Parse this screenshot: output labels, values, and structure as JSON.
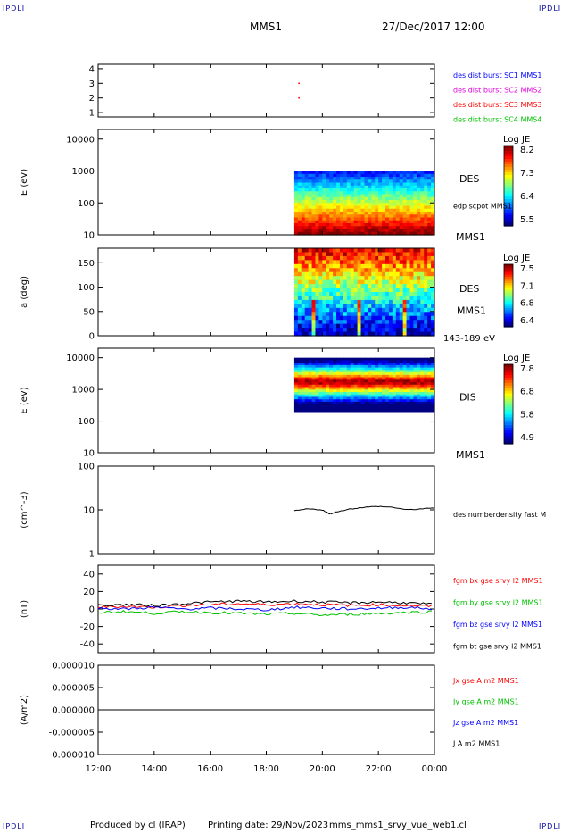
{
  "header": {
    "corner_label": "IPDLI",
    "spacecraft": "MMS1",
    "datetime": "27/Dec/2017 12:00"
  },
  "footer": {
    "produced_by": "Produced by cl (IRAP)",
    "printing_date": "Printing date: 29/Nov/2023",
    "filename": "mms_mms1_srvy_vue_web1.cl"
  },
  "colors": {
    "mms1": "#0000ff",
    "mms2": "#e000e0",
    "mms3": "#ff0000",
    "mms4": "#00c000",
    "black": "#000000"
  },
  "chart_data": [
    {
      "type": "scatter",
      "panel": "burst",
      "y_ticks": [
        "4",
        "3",
        "2",
        "1"
      ],
      "ylim": [
        0.7,
        4.3
      ],
      "points": [
        {
          "time": "19:10",
          "y": 3.0
        },
        {
          "time": "19:10",
          "y": 2.0
        }
      ],
      "legend": [
        {
          "label": "des dist burst SC1 MMS1",
          "color": "#0000ff"
        },
        {
          "label": "des dist burst SC2 MMS2",
          "color": "#e000e0"
        },
        {
          "label": "des dist burst SC3 MMS3",
          "color": "#ff0000"
        },
        {
          "label": "des dist burst SC4 MMS4",
          "color": "#00c000"
        }
      ]
    },
    {
      "type": "heatmap",
      "panel": "des-energy",
      "ylabel": "E (eV)",
      "y_ticks": [
        "10000",
        "1000",
        "100",
        "10"
      ],
      "scale": "log",
      "ylim": [
        10,
        20000
      ],
      "data_start": "19:00",
      "label": "DES",
      "sublabel": "edp scpot MMS1",
      "right_label": "MMS1",
      "colorbar": {
        "title": "Log JE",
        "ticks": [
          "8.2",
          "7.3",
          "6.4",
          "5.5"
        ]
      }
    },
    {
      "type": "heatmap",
      "panel": "des-pitch",
      "ylabel": "a (deg)",
      "y_ticks": [
        "150",
        "100",
        "50",
        "0"
      ],
      "ylim": [
        0,
        180
      ],
      "data_start": "19:00",
      "label": "DES",
      "sublabel": "MMS1",
      "right_label": "143-189 eV",
      "colorbar": {
        "title": "Log JE",
        "ticks": [
          "7.5",
          "7.1",
          "6.8",
          "6.4"
        ]
      }
    },
    {
      "type": "heatmap",
      "panel": "dis-energy",
      "ylabel": "E (eV)",
      "y_ticks": [
        "10000",
        "1000",
        "100",
        "10"
      ],
      "scale": "log",
      "ylim": [
        10,
        20000
      ],
      "data_start": "19:00",
      "label": "DIS",
      "right_label": "MMS1",
      "colorbar": {
        "title": "Log JE",
        "ticks": [
          "7.8",
          "6.8",
          "5.8",
          "4.9"
        ]
      }
    },
    {
      "type": "line",
      "panel": "density",
      "ylabel": "(cm^-3)",
      "y_ticks": [
        "100",
        "10",
        "1"
      ],
      "scale": "log",
      "ylim": [
        1,
        100
      ],
      "legend": [
        {
          "label": "des numberdensity fast M",
          "color": "#000000"
        }
      ],
      "series": [
        {
          "color": "#000000",
          "x": [
            "19:00",
            "19:30",
            "20:00",
            "20:15",
            "20:30",
            "21:00",
            "21:30",
            "22:00",
            "22:30",
            "23:00",
            "23:30",
            "00:00"
          ],
          "values": [
            9.5,
            10.5,
            10.0,
            8.0,
            9.0,
            10.5,
            11.5,
            12.0,
            11.5,
            10.0,
            10.5,
            11.0
          ]
        }
      ]
    },
    {
      "type": "line",
      "panel": "magnetic-field",
      "ylabel": "(nT)",
      "y_ticks": [
        "40",
        "20",
        "0",
        "-20",
        "-40"
      ],
      "ylim": [
        -50,
        50
      ],
      "x": [
        "12:00",
        "13:00",
        "14:00",
        "15:00",
        "16:00",
        "17:00",
        "18:00",
        "19:00",
        "20:00",
        "21:00",
        "22:00",
        "23:00",
        "00:00"
      ],
      "series": [
        {
          "name": "fgm bx gse srvy l2 MMS1",
          "color": "#ff0000",
          "values": [
            2,
            3,
            2,
            4,
            5,
            6,
            5,
            6,
            5,
            4,
            5,
            4,
            3
          ]
        },
        {
          "name": "fgm by gse srvy l2 MMS1",
          "color": "#00c000",
          "values": [
            -4,
            -3,
            -5,
            -3,
            -4,
            -5,
            -6,
            -5,
            -7,
            -6,
            -5,
            -4,
            -3
          ]
        },
        {
          "name": "fgm bz gse srvy l2 MMS1",
          "color": "#0000ff",
          "values": [
            1,
            0,
            2,
            0,
            1,
            0,
            -1,
            2,
            1,
            0,
            1,
            2,
            0
          ]
        },
        {
          "name": "fgm bt gse srvy l2 MMS1",
          "color": "#000000",
          "values": [
            4,
            5,
            4,
            6,
            8,
            9,
            8,
            9,
            8,
            7,
            8,
            7,
            5
          ]
        }
      ]
    },
    {
      "type": "line",
      "panel": "current-density",
      "ylabel": "(A/m2)",
      "y_ticks": [
        "0.000010",
        "0.000005",
        "0.000000",
        "-0.000005",
        "-0.000010"
      ],
      "ylim": [
        -1e-05,
        1e-05
      ],
      "series": [
        {
          "name": "Jx gse A m2 MMS1",
          "color": "#ff0000",
          "values": [
            0,
            0
          ]
        },
        {
          "name": "Jy gse A m2 MMS1",
          "color": "#00c000",
          "values": [
            0,
            0
          ]
        },
        {
          "name": "Jz gse A m2 MMS1",
          "color": "#0000ff",
          "values": [
            0,
            0
          ]
        },
        {
          "name": "J A m2 MMS1",
          "color": "#000000",
          "values": [
            0,
            0
          ]
        }
      ]
    }
  ],
  "x_axis": {
    "ticks": [
      "12:00",
      "14:00",
      "16:00",
      "18:00",
      "20:00",
      "22:00",
      "00:00"
    ]
  }
}
